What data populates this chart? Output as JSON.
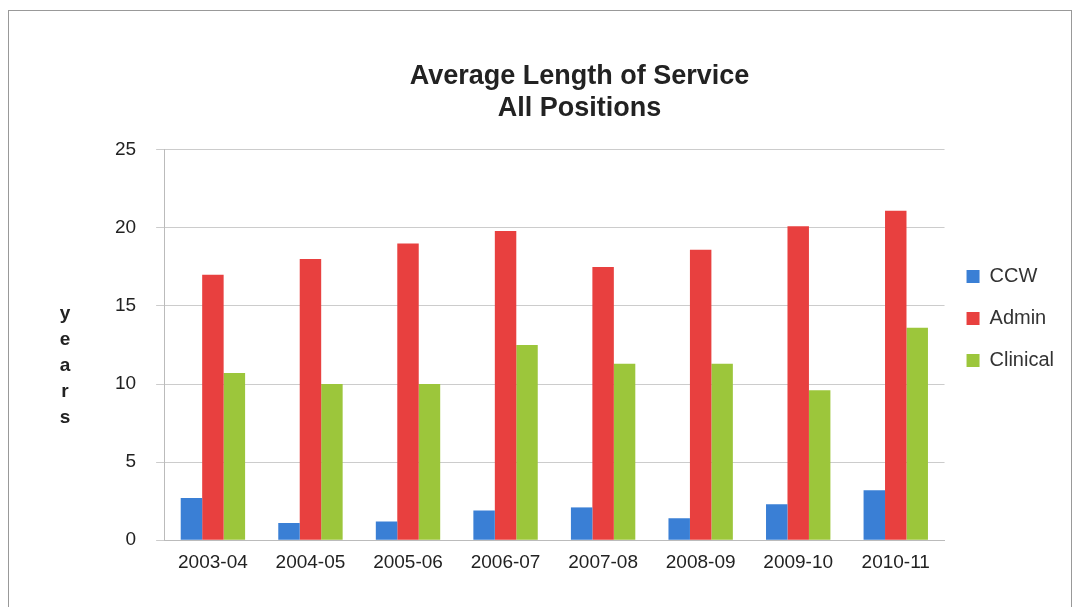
{
  "chart_data": {
    "type": "bar",
    "title": "Average Length of Service\nAll Positions",
    "ylabel": "years",
    "categories": [
      "2003-04",
      "2004-05",
      "2005-06",
      "2006-07",
      "2007-08",
      "2008-09",
      "2009-10",
      "2010-11"
    ],
    "series": [
      {
        "name": "CCW",
        "color": "#3a7fd5",
        "values": [
          2.7,
          1.1,
          1.2,
          1.9,
          2.1,
          1.4,
          2.3,
          3.2
        ]
      },
      {
        "name": "Admin",
        "color": "#e8403f",
        "values": [
          17,
          18,
          19,
          19.8,
          17.5,
          18.6,
          20.1,
          21.1
        ]
      },
      {
        "name": "Clinical",
        "color": "#9cc63b",
        "values": [
          10.7,
          10,
          10,
          12.5,
          11.3,
          11.3,
          9.6,
          13.6
        ]
      }
    ],
    "ylim": [
      0,
      25
    ],
    "yticks": [
      0,
      5,
      10,
      15,
      20,
      25
    ],
    "grid": "y",
    "legend": "right"
  }
}
